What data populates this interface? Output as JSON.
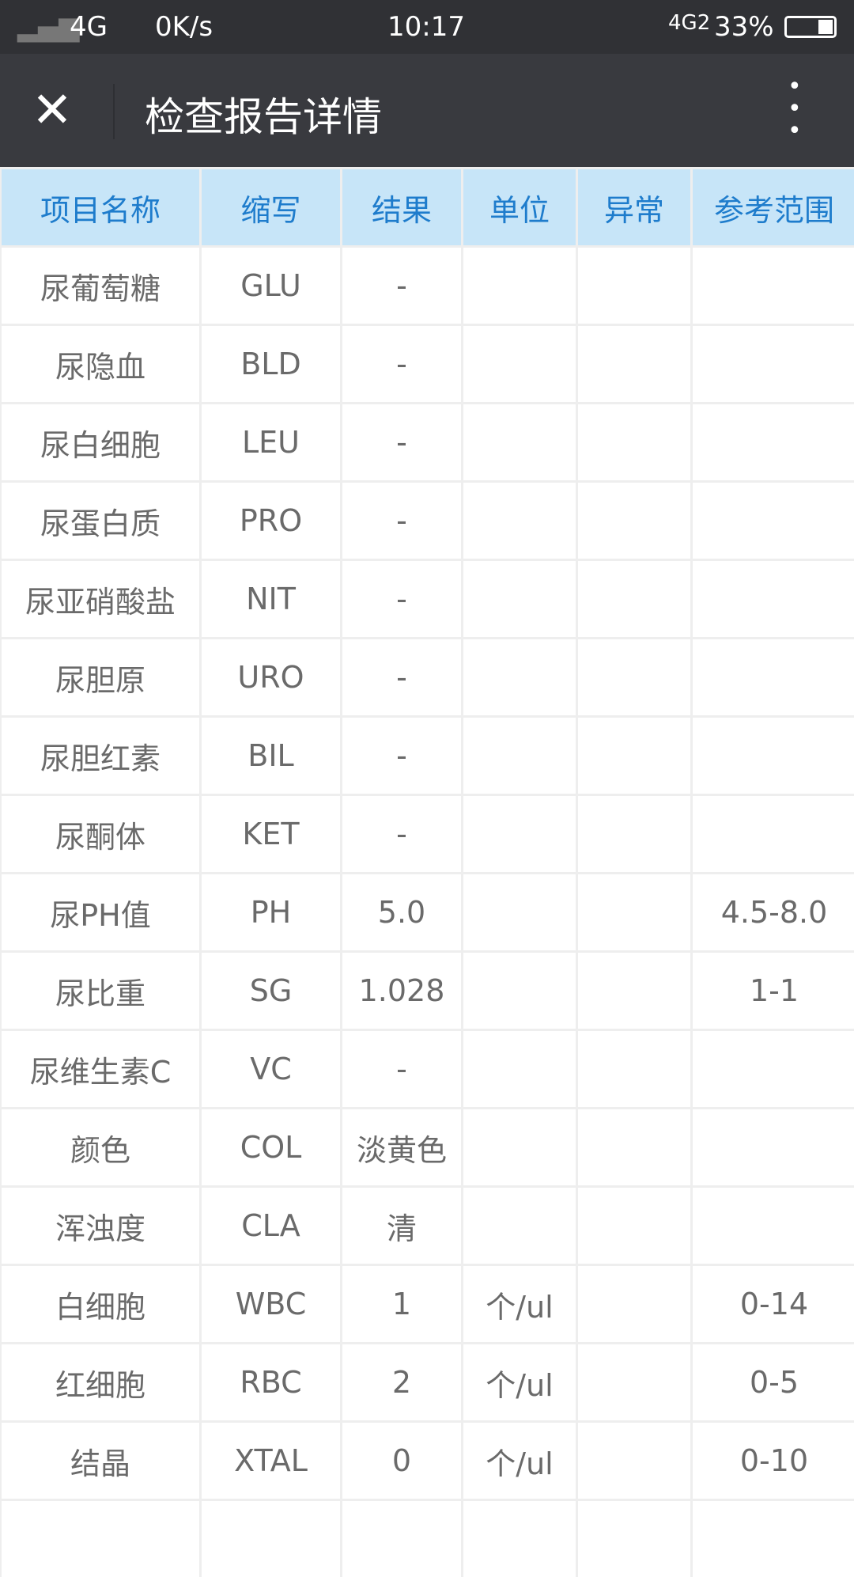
{
  "status_bar": {
    "signal": "4G",
    "speed": "0K/s",
    "time": "10:17",
    "network2": "4G2",
    "battery": "33%",
    "battery_level": 0.33
  },
  "header": {
    "title": "检查报告详情",
    "close_icon": "close-icon",
    "menu_icon": "more-vertical-icon"
  },
  "table": {
    "columns": [
      "项目名称",
      "缩写",
      "结果",
      "单位",
      "异常",
      "参考范围"
    ],
    "rows": [
      [
        "尿葡萄糖",
        "GLU",
        "-",
        "",
        "",
        ""
      ],
      [
        "尿隐血",
        "BLD",
        "-",
        "",
        "",
        ""
      ],
      [
        "尿白细胞",
        "LEU",
        "-",
        "",
        "",
        ""
      ],
      [
        "尿蛋白质",
        "PRO",
        "-",
        "",
        "",
        ""
      ],
      [
        "尿亚硝酸盐",
        "NIT",
        "-",
        "",
        "",
        ""
      ],
      [
        "尿胆原",
        "URO",
        "-",
        "",
        "",
        ""
      ],
      [
        "尿胆红素",
        "BIL",
        "-",
        "",
        "",
        ""
      ],
      [
        "尿酮体",
        "KET",
        "-",
        "",
        "",
        ""
      ],
      [
        "尿PH值",
        "PH",
        "5.0",
        "",
        "",
        "4.5-8.0"
      ],
      [
        "尿比重",
        "SG",
        "1.028",
        "",
        "",
        "1-1"
      ],
      [
        "尿维生素C",
        "VC",
        "-",
        "",
        "",
        ""
      ],
      [
        "颜色",
        "COL",
        "淡黄色",
        "",
        "",
        ""
      ],
      [
        "浑浊度",
        "CLA",
        "清",
        "",
        "",
        ""
      ],
      [
        "白细胞",
        "WBC",
        "1",
        "个/ul",
        "",
        "0-14"
      ],
      [
        "红细胞",
        "RBC",
        "2",
        "个/ul",
        "",
        "0-5"
      ],
      [
        "结晶",
        "XTAL",
        "0",
        "个/ul",
        "",
        "0-10"
      ],
      [
        "",
        "",
        "",
        "",
        "",
        ""
      ]
    ]
  }
}
